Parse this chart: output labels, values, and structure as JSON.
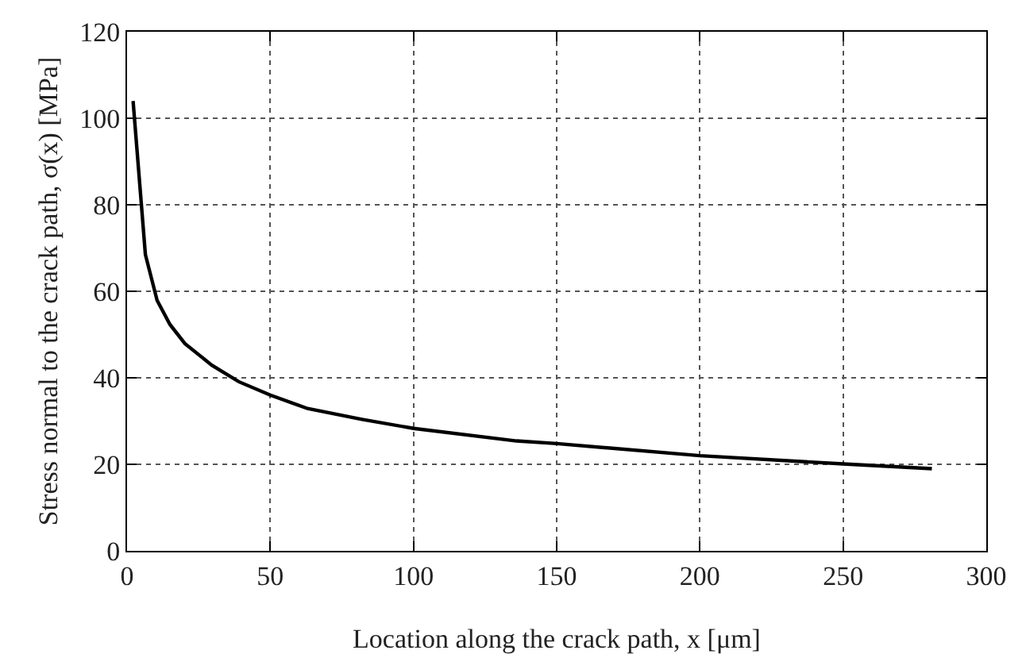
{
  "chart_data": {
    "type": "line",
    "xlabel": "Location along the crack path, x [μm]",
    "ylabel": "Stress normal to the crack path, σ(x) [MPa]",
    "x": [
      2.1,
      6.4,
      10.5,
      15,
      20.2,
      29.6,
      39,
      50,
      63,
      82,
      100,
      136,
      150,
      200,
      250,
      281
    ],
    "series": [
      {
        "color": "#000000",
        "values": [
          104,
          68.5,
          57.9,
          52.3,
          47.9,
          42.9,
          39.1,
          36,
          32.9,
          30.4,
          28.3,
          25.4,
          24.8,
          22,
          20.1,
          19
        ]
      }
    ],
    "xlim": [
      0,
      300
    ],
    "xticks": [
      0,
      50,
      100,
      150,
      200,
      250,
      300
    ],
    "ylim": [
      0,
      120
    ],
    "yticks": [
      0,
      20,
      40,
      60,
      80,
      100,
      120
    ],
    "grid": true,
    "marker": "none",
    "line_style": "solid"
  }
}
